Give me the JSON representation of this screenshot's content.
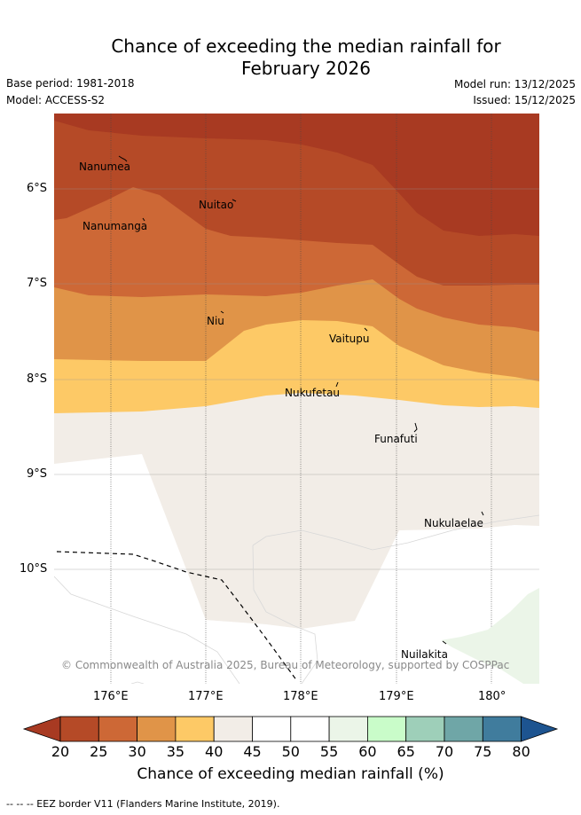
{
  "title_line1": "Chance of exceeding the median rainfall for",
  "title_line2": "February 2026",
  "base_period": "Base period: 1981-2018",
  "model": "Model: ACCESS-S2",
  "model_run": "Model run: 13/12/2025",
  "issued": "Issued: 15/12/2025",
  "lat_labels": [
    "6°S",
    "7°S",
    "8°S",
    "9°S",
    "10°S"
  ],
  "lon_labels": [
    "176°E",
    "177°E",
    "178°E",
    "179°E",
    "180°"
  ],
  "places": {
    "nanumea": "Nanumea",
    "nuitao": "Nuitao",
    "nanumanga": "Nanumanga",
    "niu": "Niu",
    "vaitupu": "Vaitupu",
    "nukufetau": "Nukufetau",
    "funafuti": "Funafuti",
    "nukulaelae": "Nukulaelae",
    "nuilakita": "Nuilakita"
  },
  "copyright": "© Commonwealth of Australia 2025, Bureau of Meteorology, supported by COSPPac",
  "colorbar": {
    "ticks": [
      "20",
      "25",
      "30",
      "35",
      "40",
      "45",
      "50",
      "55",
      "60",
      "65",
      "70",
      "75",
      "80"
    ],
    "colors": {
      "under": "#a83a22",
      "c20_25": "#b54a27",
      "c25_30": "#cd6836",
      "c30_35": "#e09448",
      "c35_40": "#fdc966",
      "c40_45": "#f2ede7",
      "c45_50": "#ffffff",
      "c50_55": "#ffffff",
      "c55_60": "#ebf5e8",
      "c60_65": "#c9fcc9",
      "c65_70": "#9ecfb9",
      "c70_75": "#6fa6a7",
      "c75_80": "#407c9d",
      "over": "#1d5490"
    },
    "label": "Chance of exceeding median rainfall (%)"
  },
  "eez_note": "-- -- -- EEZ border V11 (Flanders Marine Institute, 2019)."
}
